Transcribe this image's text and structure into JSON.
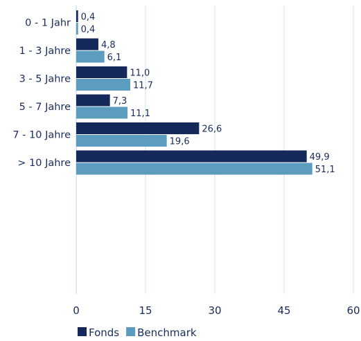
{
  "chart_data": {
    "type": "bar",
    "orientation": "horizontal",
    "categories": [
      "0 - 1 Jahr",
      "1 - 3 Jahre",
      "3 - 5 Jahre",
      "5 - 7 Jahre",
      "7 - 10 Jahre",
      "> 10 Jahre"
    ],
    "series": [
      {
        "name": "Fonds",
        "color": "#14285a",
        "values": [
          0.4,
          4.8,
          11.0,
          7.3,
          26.6,
          49.9
        ],
        "labels": [
          "0,4",
          "4,8",
          "11,0",
          "7,3",
          "26,6",
          "49,9"
        ]
      },
      {
        "name": "Benchmark",
        "color": "#5b9cbf",
        "values": [
          0.4,
          6.1,
          11.7,
          11.1,
          19.6,
          51.1
        ],
        "labels": [
          "0,4",
          "6,1",
          "11,7",
          "11,1",
          "19,6",
          "51,1"
        ]
      }
    ],
    "xlim": [
      0,
      60
    ],
    "xticks": [
      0,
      15,
      30,
      45,
      60
    ],
    "xtick_labels": [
      "0",
      "15",
      "30",
      "45",
      "60"
    ],
    "grid": true,
    "grid_color": "#cfe3ee",
    "legend_position": "bottom-left"
  }
}
